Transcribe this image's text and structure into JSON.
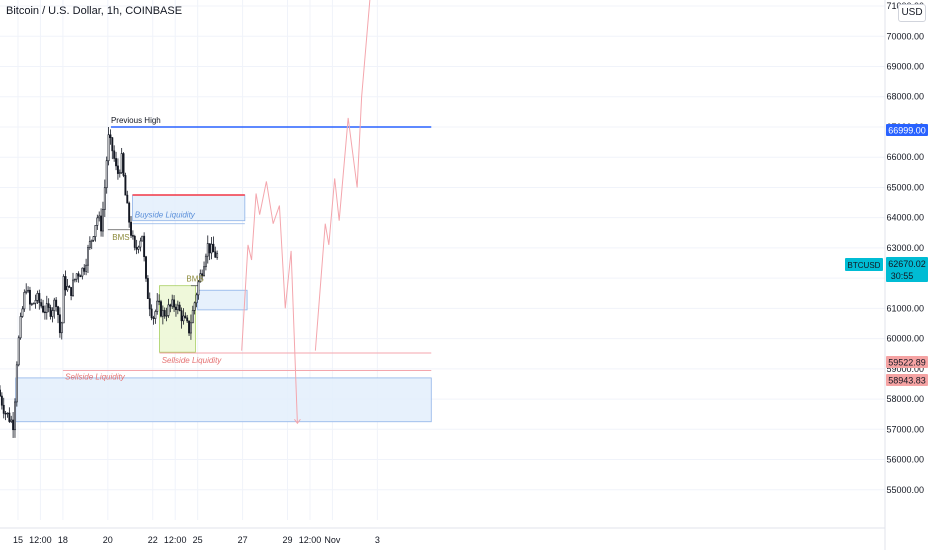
{
  "header": {
    "title": "Bitcoin / U.S. Dollar, 1h, COINBASE",
    "currency_button": "USD"
  },
  "colors": {
    "candle": "#131722",
    "blue_line": "#2962ff",
    "red_line": "#f23645",
    "zone_blue_fill": "#e3eefc",
    "zone_blue_stroke": "#8fb3e8",
    "zone_green_fill": "#ecf7d4",
    "zone_green_stroke": "#a8cf62",
    "projection": "#f4a6ad",
    "level_red_fill": "#f5a3a3",
    "current_price_fill": "#00bcd4",
    "high_label_fill": "#2962ff"
  },
  "chart_data": {
    "type": "candlestick",
    "symbol": "BTCUSD",
    "timeframe": "1h",
    "exchange": "COINBASE",
    "xlim_days": [
      14.6,
      34.3
    ],
    "ylim": [
      54000,
      71200
    ],
    "x_ticks": [
      {
        "label": "15",
        "t": 15
      },
      {
        "label": "12:00",
        "t": 15.5
      },
      {
        "label": "18",
        "t": 16
      },
      {
        "label": "20",
        "t": 17
      },
      {
        "label": "22",
        "t": 18
      },
      {
        "label": "12:00",
        "t": 18.5
      },
      {
        "label": "25",
        "t": 19
      },
      {
        "label": "27",
        "t": 20
      },
      {
        "label": "29",
        "t": 21
      },
      {
        "label": "12:00",
        "t": 21.5
      },
      {
        "label": "Nov",
        "t": 22
      },
      {
        "label": "3",
        "t": 23
      }
    ],
    "y_ticks": [
      55000,
      56000,
      57000,
      58000,
      59000,
      60000,
      61000,
      62000,
      63000,
      64000,
      65000,
      66000,
      67000,
      68000,
      69000,
      70000,
      71000
    ],
    "y_tick_labels": [
      "55000.00",
      "56000.00",
      "57000.00",
      "58000.00",
      "59000.00",
      "60000.00",
      "61000.00",
      "62000.00",
      "63000.00",
      "64000.00",
      "65000.00",
      "66000.00",
      "67000.00",
      "68000.00",
      "69000.00",
      "70000.00",
      "71000.00"
    ],
    "price_path": [
      [
        14.6,
        58300
      ],
      [
        14.75,
        57600
      ],
      [
        14.95,
        57150
      ],
      [
        15.0,
        59000
      ],
      [
        15.08,
        60300
      ],
      [
        15.22,
        61800
      ],
      [
        15.32,
        61000
      ],
      [
        15.45,
        61350
      ],
      [
        15.6,
        61000
      ],
      [
        15.75,
        60900
      ],
      [
        15.9,
        61300
      ],
      [
        16.0,
        59850
      ],
      [
        16.05,
        61900
      ],
      [
        16.2,
        61500
      ],
      [
        16.35,
        62150
      ],
      [
        16.5,
        62300
      ],
      [
        16.6,
        62900
      ],
      [
        16.7,
        63400
      ],
      [
        16.8,
        64050
      ],
      [
        16.9,
        63700
      ],
      [
        16.97,
        64900
      ],
      [
        17.05,
        66650
      ],
      [
        17.15,
        66200
      ],
      [
        17.25,
        65400
      ],
      [
        17.35,
        65900
      ],
      [
        17.45,
        64500
      ],
      [
        17.55,
        63600
      ],
      [
        17.65,
        62800
      ],
      [
        17.72,
        63200
      ],
      [
        17.82,
        63500
      ],
      [
        17.87,
        62000
      ],
      [
        17.95,
        61300
      ],
      [
        18.05,
        60700
      ],
      [
        18.15,
        61100
      ],
      [
        18.28,
        60800
      ],
      [
        18.4,
        61000
      ],
      [
        18.55,
        61150
      ],
      [
        18.7,
        60700
      ],
      [
        18.85,
        60300
      ],
      [
        18.95,
        61000
      ],
      [
        19.05,
        61800
      ],
      [
        19.15,
        62350
      ],
      [
        19.25,
        63100
      ],
      [
        19.35,
        62900
      ],
      [
        19.45,
        62750
      ]
    ],
    "levels": [
      {
        "name": "Previous High",
        "price": 66999.0,
        "price_label": "66999.00"
      },
      {
        "name": "current",
        "price": 62670.02,
        "symbol_label": "BTCUSD",
        "price_label": "62670.02",
        "countdown": "30:55"
      },
      {
        "name": "level_1",
        "price": 59522.89,
        "price_label": "59522.89"
      },
      {
        "name": "level_2",
        "price": 58943.83,
        "price_label": "58943.83"
      }
    ],
    "annotations": {
      "previous_high": "Previous High",
      "bms_1": "BMS",
      "bms_2": "BMS",
      "buyside": "Buyside Liquidity",
      "sellside_1": "Sellside Liquidity",
      "sellside_2": "Sellside Liquidity"
    },
    "zones": [
      {
        "kind": "blue",
        "t0": 17.55,
        "t1": 20.05,
        "p0": 63900,
        "p1": 64750
      },
      {
        "kind": "blue",
        "t0": 19.0,
        "t1": 20.1,
        "p0": 60950,
        "p1": 61600
      },
      {
        "kind": "blue",
        "t0": 14.95,
        "t1": 24.2,
        "p0": 57250,
        "p1": 58700
      },
      {
        "kind": "green",
        "t0": 18.15,
        "t1": 18.95,
        "p0": 59550,
        "p1": 61750
      }
    ],
    "lines": [
      {
        "kind": "blue",
        "t0": 17.07,
        "t1": 24.2,
        "price": 66999
      },
      {
        "kind": "red",
        "t0": 17.55,
        "t1": 20.05,
        "price": 64750
      },
      {
        "kind": "blue_thin",
        "t0": 17.55,
        "t1": 20.05,
        "price": 63800
      },
      {
        "kind": "bms",
        "t0": 17.0,
        "t1": 17.5,
        "price": 63600
      },
      {
        "kind": "bms",
        "t0": 18.85,
        "t1": 19.0,
        "price": 61750
      },
      {
        "kind": "red_thin",
        "t0": 18.15,
        "t1": 24.2,
        "price": 59522.89
      },
      {
        "kind": "red_thin",
        "t0": 16.0,
        "t1": 24.2,
        "price": 58943.83
      }
    ],
    "projection_1": [
      [
        19.98,
        59600
      ],
      [
        20.12,
        63100
      ],
      [
        20.2,
        62600
      ],
      [
        20.3,
        64800
      ],
      [
        20.38,
        64100
      ],
      [
        20.53,
        65200
      ],
      [
        20.68,
        63800
      ],
      [
        20.82,
        64400
      ],
      [
        20.95,
        61000
      ],
      [
        21.08,
        62900
      ],
      [
        21.22,
        57200
      ]
    ],
    "projection_2": [
      [
        21.62,
        59600
      ],
      [
        21.84,
        63800
      ],
      [
        21.92,
        63100
      ],
      [
        22.05,
        65300
      ],
      [
        22.15,
        63900
      ],
      [
        22.35,
        67300
      ],
      [
        22.55,
        65000
      ],
      [
        22.65,
        68000
      ],
      [
        22.85,
        71500
      ]
    ]
  }
}
